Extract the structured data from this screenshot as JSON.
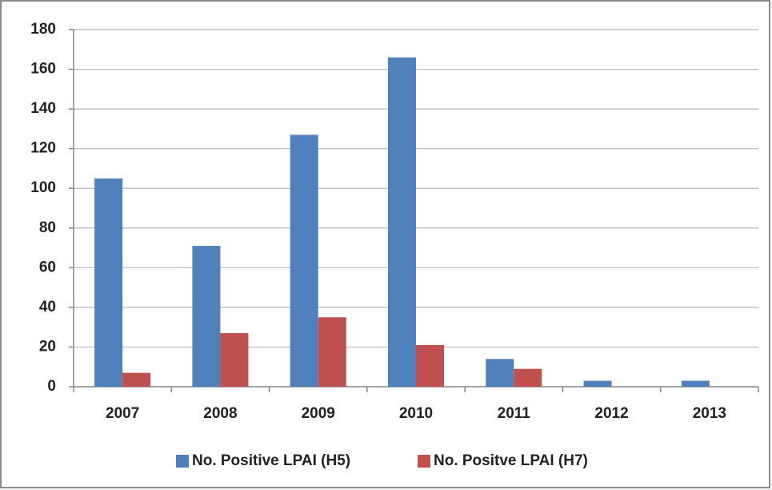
{
  "chart_data": {
    "type": "bar",
    "categories": [
      "2007",
      "2008",
      "2009",
      "2010",
      "2011",
      "2012",
      "2013"
    ],
    "series": [
      {
        "name": "No. Positive LPAI (H5)",
        "color": "#4f81bd",
        "values": [
          105,
          71,
          127,
          166,
          14,
          3,
          3
        ]
      },
      {
        "name": "No. Positve LPAI (H7)",
        "color": "#c0504d",
        "values": [
          7,
          27,
          35,
          21,
          9,
          0,
          0
        ]
      }
    ],
    "ylim": [
      0,
      180
    ],
    "yticks": [
      0,
      20,
      40,
      60,
      80,
      100,
      120,
      140,
      160,
      180
    ],
    "grid": true,
    "legend": "bottom"
  }
}
